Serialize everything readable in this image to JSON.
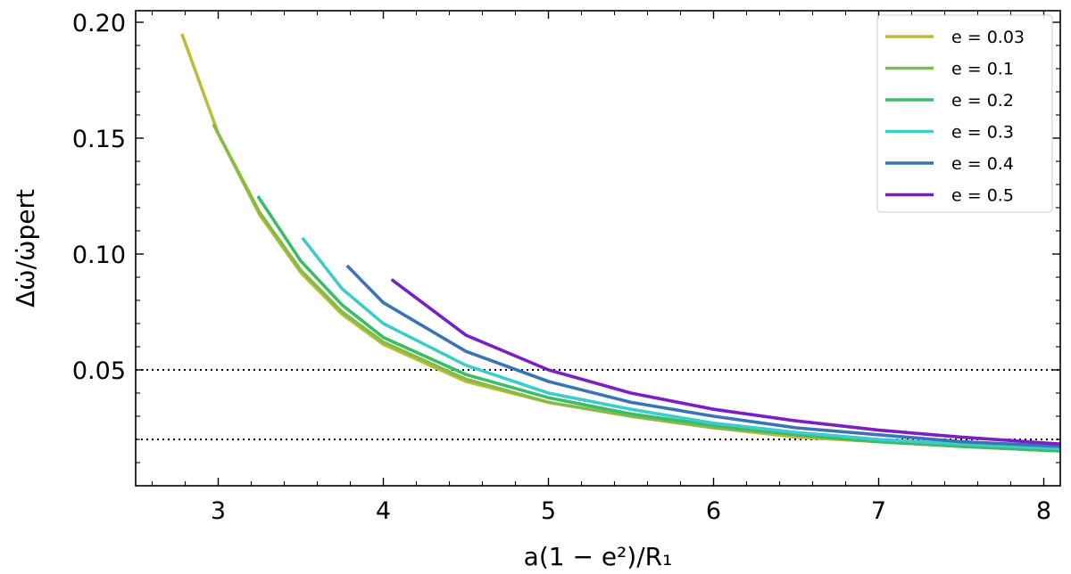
{
  "chart_data": {
    "type": "line",
    "xlabel": "a(1 − e²)/R₁",
    "ylabel": "Δω̇/ω̇pert",
    "xlim": [
      2.5,
      8.1
    ],
    "ylim": [
      0.0,
      0.205
    ],
    "xticks": [
      3,
      4,
      5,
      6,
      7,
      8
    ],
    "yticks": [
      0.05,
      0.1,
      0.15,
      0.2
    ],
    "ytick_labels": [
      "0.05",
      "0.10",
      "0.15",
      "0.20"
    ],
    "xtick_labels": [
      "3",
      "4",
      "5",
      "6",
      "7",
      "8"
    ],
    "grid": false,
    "legend_position": "top-right",
    "reference_lines": [
      {
        "style": "dotted",
        "color": "#000000",
        "y": 0.05
      },
      {
        "style": "dotted",
        "color": "#000000",
        "y": 0.02
      }
    ],
    "series": [
      {
        "name": "e = 0.03",
        "color": "#bcbd3b",
        "x": [
          2.78,
          3.0,
          3.25,
          3.5,
          3.75,
          4.0,
          4.5,
          5.0,
          5.5,
          6.0,
          6.5,
          7.0,
          7.5,
          8.1
        ],
        "y": [
          0.195,
          0.152,
          0.117,
          0.092,
          0.074,
          0.061,
          0.045,
          0.036,
          0.03,
          0.025,
          0.021,
          0.019,
          0.017,
          0.015
        ]
      },
      {
        "name": "e = 0.1",
        "color": "#86bb45",
        "x": [
          2.97,
          3.25,
          3.5,
          3.75,
          4.0,
          4.5,
          5.0,
          5.5,
          6.0,
          6.5,
          7.0,
          7.5,
          8.1
        ],
        "y": [
          0.156,
          0.118,
          0.093,
          0.075,
          0.062,
          0.046,
          0.036,
          0.03,
          0.025,
          0.022,
          0.019,
          0.017,
          0.015
        ]
      },
      {
        "name": "e = 0.2",
        "color": "#3cbb6b",
        "x": [
          3.24,
          3.5,
          3.75,
          4.0,
          4.5,
          5.0,
          5.5,
          6.0,
          6.5,
          7.0,
          7.5,
          8.1
        ],
        "y": [
          0.125,
          0.097,
          0.078,
          0.064,
          0.048,
          0.038,
          0.031,
          0.026,
          0.022,
          0.019,
          0.017,
          0.015
        ]
      },
      {
        "name": "e = 0.3",
        "color": "#3ecbcb",
        "x": [
          3.51,
          3.75,
          4.0,
          4.5,
          5.0,
          5.5,
          6.0,
          6.5,
          7.0,
          7.5,
          8.1
        ],
        "y": [
          0.107,
          0.085,
          0.07,
          0.052,
          0.04,
          0.033,
          0.027,
          0.023,
          0.02,
          0.018,
          0.016
        ]
      },
      {
        "name": "e = 0.4",
        "color": "#3a74b4",
        "x": [
          3.78,
          4.0,
          4.5,
          5.0,
          5.5,
          6.0,
          6.5,
          7.0,
          7.5,
          8.1
        ],
        "y": [
          0.095,
          0.079,
          0.058,
          0.045,
          0.036,
          0.03,
          0.025,
          0.022,
          0.019,
          0.017
        ]
      },
      {
        "name": "e = 0.5",
        "color": "#7a1fc1",
        "x": [
          4.05,
          4.5,
          5.0,
          5.5,
          6.0,
          6.5,
          7.0,
          7.5,
          8.1
        ],
        "y": [
          0.089,
          0.065,
          0.05,
          0.04,
          0.033,
          0.028,
          0.024,
          0.021,
          0.018
        ]
      }
    ]
  }
}
